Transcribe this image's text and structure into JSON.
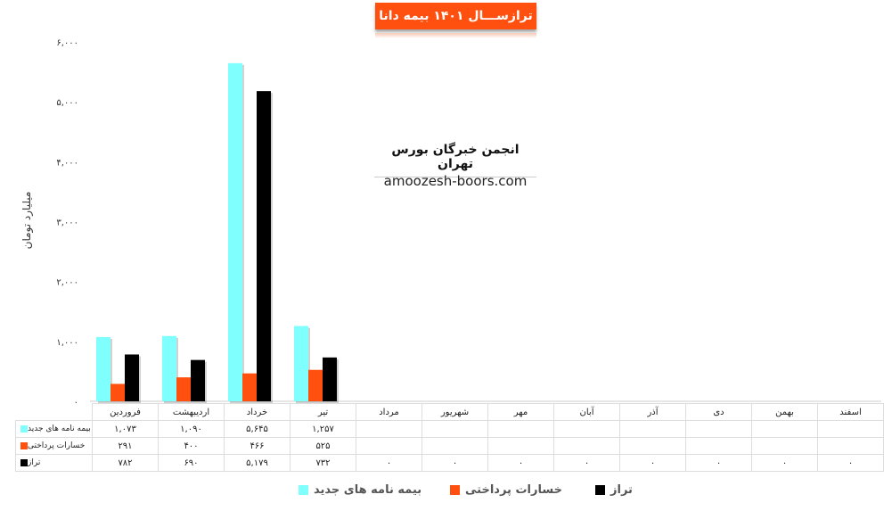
{
  "title": "ترازســـال ۱۴۰۱ بیمه دانا",
  "watermark": {
    "line1": "انجمن خبرگان بورس تهران",
    "line2": "amoozesh-boors.com"
  },
  "chart_data": {
    "type": "bar",
    "title": "ترازســـال ۱۴۰۱ بیمه دانا",
    "ylabel": "میلیارد تومان",
    "ylim": [
      0,
      6000
    ],
    "yticks": [
      0,
      1000,
      2000,
      3000,
      4000,
      5000,
      6000
    ],
    "ytick_labels": [
      "۰",
      "۱,۰۰۰",
      "۲,۰۰۰",
      "۳,۰۰۰",
      "۴,۰۰۰",
      "۵,۰۰۰",
      "۶,۰۰۰"
    ],
    "categories": [
      "فروردین",
      "اردیبهشت",
      "خرداد",
      "تیر",
      "مرداد",
      "شهریور",
      "مهر",
      "آبان",
      "آذر",
      "دی",
      "بهمن",
      "اسفند"
    ],
    "legend_placement": "bottom",
    "grid": false,
    "series": [
      {
        "name": "بیمه نامه های جدید",
        "color": "#80ffff",
        "values": [
          1073,
          1090,
          5645,
          1257,
          null,
          null,
          null,
          null,
          null,
          null,
          null,
          null
        ],
        "labels": [
          "۱,۰۷۳",
          "۱,۰۹۰",
          "۵,۶۴۵",
          "۱,۲۵۷",
          "",
          "",
          "",
          "",
          "",
          "",
          "",
          ""
        ]
      },
      {
        "name": "خسارات پرداختی",
        "color": "#ff5010",
        "values": [
          291,
          400,
          466,
          525,
          null,
          null,
          null,
          null,
          null,
          null,
          null,
          null
        ],
        "labels": [
          "۲۹۱",
          "۴۰۰",
          "۴۶۶",
          "۵۲۵",
          "",
          "",
          "",
          "",
          "",
          "",
          "",
          ""
        ]
      },
      {
        "name": "تراز",
        "color": "#000000",
        "values": [
          782,
          690,
          5179,
          732,
          0,
          0,
          0,
          0,
          0,
          0,
          0,
          0
        ],
        "labels": [
          "۷۸۲",
          "۶۹۰",
          "۵,۱۷۹",
          "۷۳۲",
          "۰",
          "۰",
          "۰",
          "۰",
          "۰",
          "۰",
          "۰",
          "۰"
        ]
      }
    ]
  }
}
